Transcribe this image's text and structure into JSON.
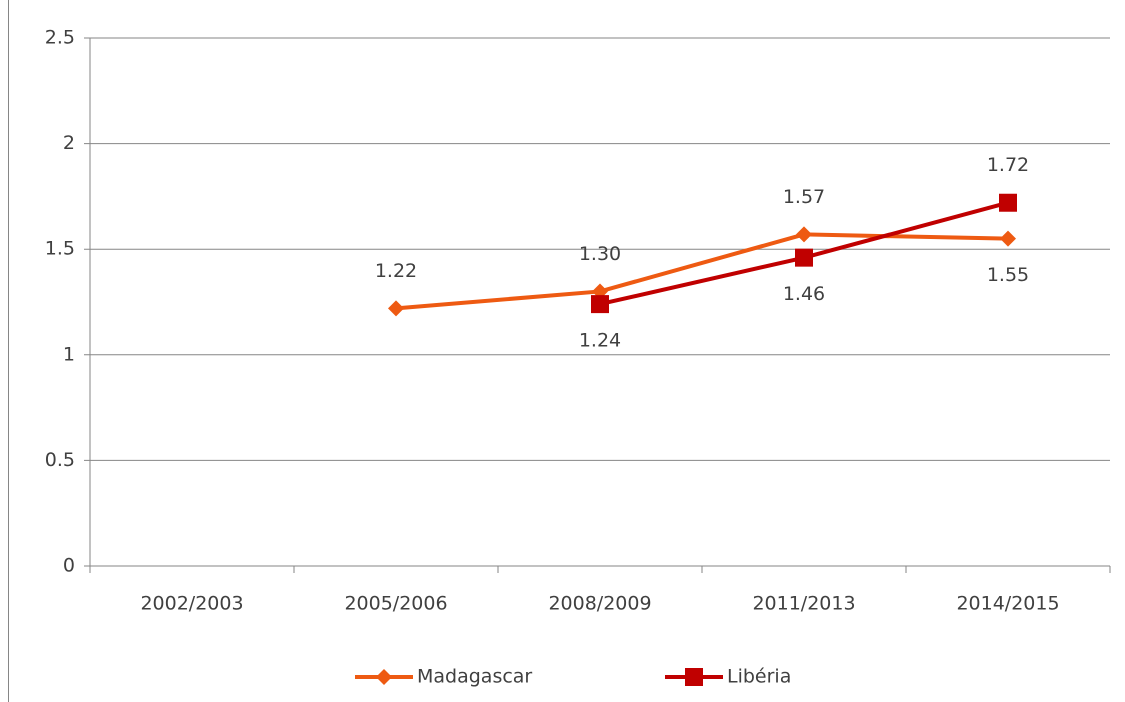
{
  "chart_data": {
    "type": "line",
    "categories": [
      "2002/2003",
      "2005/2006",
      "2008/2009",
      "2011/2013",
      "2014/2015"
    ],
    "series": [
      {
        "name": "Madagascar",
        "color": "#ee5a12",
        "marker": "diamond",
        "values": [
          null,
          1.22,
          1.3,
          1.57,
          1.55
        ],
        "value_labels": [
          null,
          "1.22",
          "1.30",
          "1.57",
          "1.55"
        ]
      },
      {
        "name": "Libéria",
        "color": "#c00000",
        "marker": "square",
        "values": [
          null,
          null,
          1.24,
          1.46,
          1.72
        ],
        "value_labels": [
          null,
          null,
          "1.24",
          "1.46",
          "1.72"
        ]
      }
    ],
    "ylim": [
      0,
      2.5
    ],
    "yticks": [
      0,
      0.5,
      1,
      1.5,
      2,
      2.5
    ],
    "grid": true,
    "legend": "bottom"
  }
}
